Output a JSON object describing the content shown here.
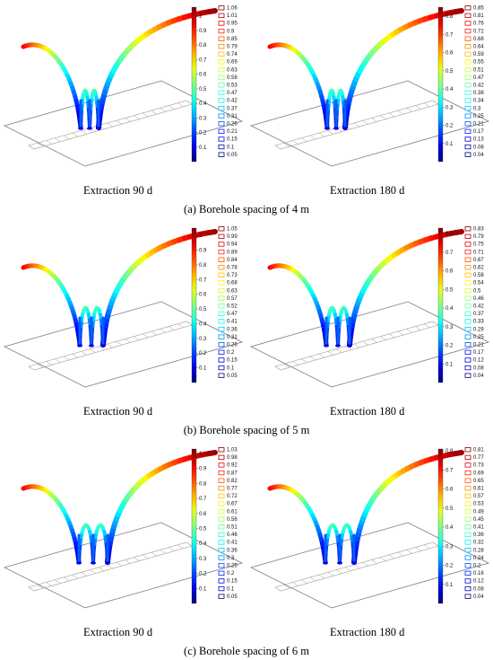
{
  "rows": [
    {
      "caption": "(a) Borehole spacing of 4 m",
      "panels": [
        {
          "label": "Extraction 90 d",
          "bar_ticks": [
            "1",
            "0.9",
            "0.8",
            "0.7",
            "0.6",
            "0.5",
            "0.4",
            "0.3",
            "0.2",
            "0.1"
          ],
          "legend": [
            "1.06",
            "1.01",
            "0.95",
            "0.9",
            "0.85",
            "0.79",
            "0.74",
            "0.69",
            "0.63",
            "0.58",
            "0.53",
            "0.47",
            "0.42",
            "0.37",
            "0.31",
            "0.26",
            "0.21",
            "0.15",
            "0.1",
            "0.05"
          ]
        },
        {
          "label": "Extraction 180 d",
          "bar_ticks": [
            "0.8",
            "0.7",
            "0.6",
            "0.5",
            "0.4",
            "0.3",
            "0.2",
            "0.1"
          ],
          "legend": [
            "0.85",
            "0.81",
            "0.76",
            "0.72",
            "0.68",
            "0.64",
            "0.59",
            "0.55",
            "0.51",
            "0.47",
            "0.42",
            "0.38",
            "0.34",
            "0.3",
            "0.25",
            "0.21",
            "0.17",
            "0.13",
            "0.08",
            "0.04"
          ]
        }
      ]
    },
    {
      "caption": "(b) Borehole spacing of 5 m",
      "panels": [
        {
          "label": "Extraction 90 d",
          "bar_ticks": [
            "1",
            "0.9",
            "0.8",
            "0.7",
            "0.6",
            "0.5",
            "0.4",
            "0.3",
            "0.2",
            "0.1"
          ],
          "legend": [
            "1.05",
            "0.99",
            "0.94",
            "0.89",
            "0.84",
            "0.78",
            "0.73",
            "0.68",
            "0.63",
            "0.57",
            "0.52",
            "0.47",
            "0.41",
            "0.36",
            "0.31",
            "0.26",
            "0.2",
            "0.15",
            "0.1",
            "0.05"
          ]
        },
        {
          "label": "Extraction 180 d",
          "bar_ticks": [
            "0.8",
            "0.7",
            "0.6",
            "0.5",
            "0.4",
            "0.3",
            "0.2",
            "0.1"
          ],
          "legend": [
            "0.83",
            "0.79",
            "0.75",
            "0.71",
            "0.67",
            "0.62",
            "0.58",
            "0.54",
            "0.5",
            "0.46",
            "0.42",
            "0.37",
            "0.33",
            "0.29",
            "0.25",
            "0.21",
            "0.17",
            "0.12",
            "0.08",
            "0.04"
          ]
        }
      ]
    },
    {
      "caption": "(c) Borehole spacing of 6 m",
      "panels": [
        {
          "label": "Extraction 90 d",
          "bar_ticks": [
            "1",
            "0.9",
            "0.8",
            "0.7",
            "0.6",
            "0.5",
            "0.4",
            "0.3",
            "0.2",
            "0.1"
          ],
          "legend": [
            "1.03",
            "0.98",
            "0.92",
            "0.87",
            "0.82",
            "0.77",
            "0.72",
            "0.67",
            "0.61",
            "0.56",
            "0.51",
            "0.46",
            "0.41",
            "0.36",
            "0.3",
            "0.25",
            "0.2",
            "0.15",
            "0.1",
            "0.05"
          ]
        },
        {
          "label": "Extraction 180 d",
          "bar_ticks": [
            "0.8",
            "0.7",
            "0.6",
            "0.5",
            "0.4",
            "0.3",
            "0.2",
            "0.1"
          ],
          "legend": [
            "0.81",
            "0.77",
            "0.73",
            "0.69",
            "0.65",
            "0.61",
            "0.57",
            "0.53",
            "0.49",
            "0.45",
            "0.41",
            "0.36",
            "0.32",
            "0.28",
            "0.24",
            "0.2",
            "0.16",
            "0.12",
            "0.08",
            "0.04"
          ]
        }
      ]
    }
  ]
}
